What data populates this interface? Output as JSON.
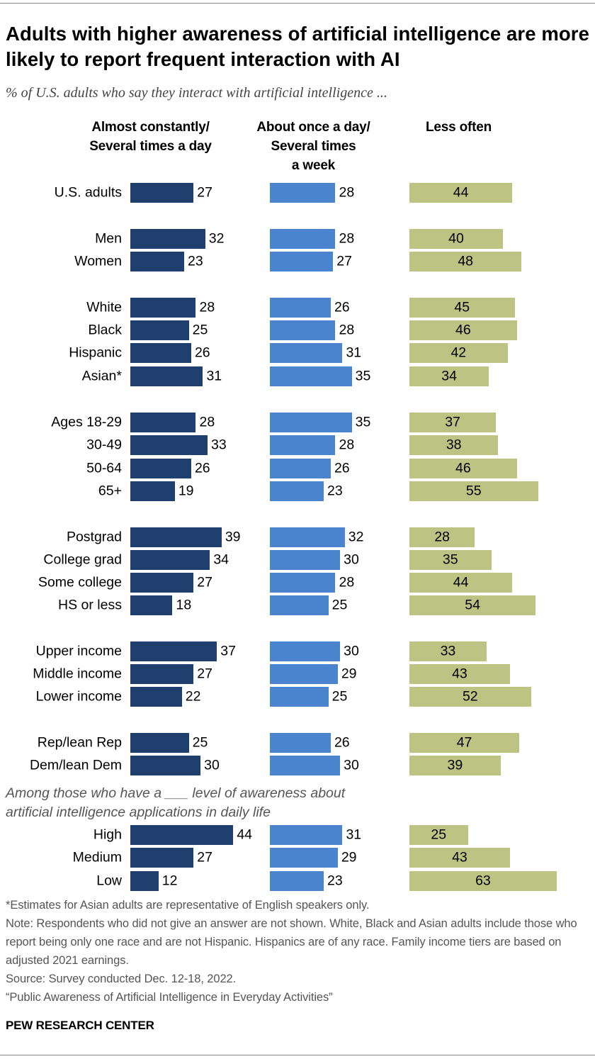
{
  "title": "Adults with higher awareness of artificial intelligence are more likely to report frequent interaction with AI",
  "subtitle": "% of U.S. adults who say they interact with artificial intelligence ...",
  "colors": {
    "almost_constantly": "#1f3f6f",
    "once_a_day": "#4a84cf",
    "less_often": "#bcc383"
  },
  "chart_data": {
    "type": "bar",
    "orientation": "horizontal",
    "stacked": false,
    "series": [
      {
        "name": "Almost constantly/ Several times a day",
        "head_lines": [
          "Almost constantly/",
          "Several times a day"
        ],
        "values": [
          27,
          32,
          23,
          28,
          25,
          26,
          31,
          28,
          33,
          26,
          19,
          39,
          34,
          27,
          18,
          37,
          27,
          22,
          25,
          30,
          44,
          27,
          12
        ]
      },
      {
        "name": "About once a day/ Several times a week",
        "head_lines": [
          "About once a day/",
          "Several times",
          "a week"
        ],
        "values": [
          28,
          28,
          27,
          26,
          28,
          31,
          35,
          35,
          28,
          26,
          23,
          32,
          30,
          28,
          25,
          30,
          29,
          25,
          26,
          30,
          31,
          29,
          23
        ]
      },
      {
        "name": "Less often",
        "head_lines": [
          "Less often"
        ],
        "values": [
          44,
          40,
          48,
          45,
          46,
          42,
          34,
          37,
          38,
          46,
          55,
          28,
          35,
          44,
          54,
          33,
          43,
          52,
          47,
          39,
          25,
          43,
          63
        ]
      }
    ],
    "categories": [
      "U.S. adults",
      "Men",
      "Women",
      "White",
      "Black",
      "Hispanic",
      "Asian*",
      "Ages 18-29",
      "30-49",
      "50-64",
      "65+",
      "Postgrad",
      "College grad",
      "Some college",
      "HS or less",
      "Upper income",
      "Middle income",
      "Lower income",
      "Rep/lean Rep",
      "Dem/lean Dem",
      "High",
      "Medium",
      "Low"
    ],
    "awareness_label": [
      "Among those who have a ___ level of awareness about",
      "artificial intelligence applications in daily life"
    ]
  },
  "notes": [
    "*Estimates for Asian adults are representative of English speakers only.",
    "Note: Respondents who did not give an answer are not shown. White, Black and Asian adults include those who report being only one race and are not Hispanic. Hispanics are of any race. Family income tiers are based on adjusted 2021 earnings.",
    "Source: Survey conducted Dec. 12-18, 2022.",
    "“Public Awareness of Artificial Intelligence in Everyday Activities”"
  ],
  "brand": "PEW RESEARCH CENTER"
}
